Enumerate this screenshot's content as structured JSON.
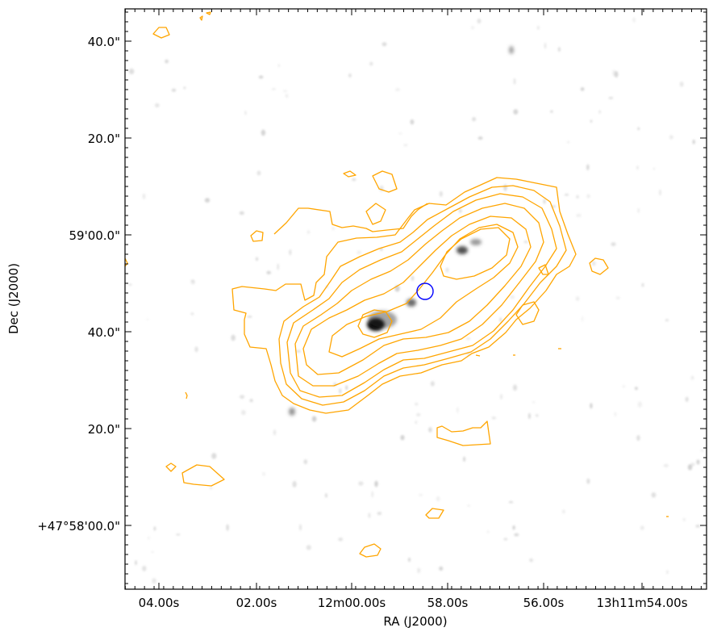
{
  "figure": {
    "xlabel": "RA (J2000)",
    "ylabel": "Dec (J2000)",
    "x_ticks": [
      "04.00s",
      "02.00s",
      "12m00.00s",
      "58.00s",
      "56.00s",
      "13h11m54.00s"
    ],
    "y_ticks": [
      "40.0\"",
      "20.0\"",
      "59'00.0\"",
      "40.0\"",
      "20.0\"",
      "+47°58'00.0\""
    ],
    "colors": {
      "contour": "#ffa500",
      "marker_circle": "#0000ff",
      "frame": "#000000",
      "background": "#ffffff"
    }
  }
}
